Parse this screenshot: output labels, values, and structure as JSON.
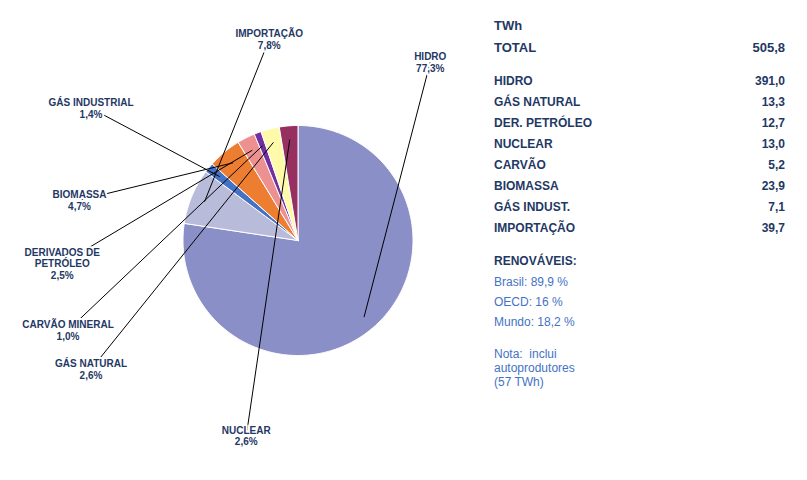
{
  "chart_data": {
    "type": "pie",
    "categories": [
      "HIDRO",
      "IMPORTAÇÃO",
      "GÁS INDUSTRIAL",
      "BIOMASSA",
      "DERIVADOS DE\nPETRÓLEO",
      "CARVÃO MINERAL",
      "GÁS NATURAL",
      "NUCLEAR"
    ],
    "values": [
      77.3,
      7.8,
      1.4,
      4.7,
      2.5,
      1.0,
      2.6,
      2.6
    ],
    "value_labels": [
      "77,3%",
      "7,8%",
      "1,4%",
      "4,7%",
      "2,5%",
      "1,0%",
      "2,6%",
      "2,6%"
    ],
    "colors": [
      "#8B8FC8",
      "#B8BCDA",
      "#4472C4",
      "#ED7D31",
      "#ED9090",
      "#7030A0",
      "#FFFAAA",
      "#963060"
    ],
    "data_labels": true,
    "annotations": {
      "table": {
        "title": "TWh",
        "total": {
          "label": "TOTAL",
          "value": "505,8"
        },
        "rows": [
          {
            "label": "HIDRO",
            "value": "391,0"
          },
          {
            "label": "GÁS NATURAL",
            "value": "13,3"
          },
          {
            "label": "DER. PETRÓLEO",
            "value": "12,7"
          },
          {
            "label": "NUCLEAR",
            "value": "13,0"
          },
          {
            "label": "CARVÃO",
            "value": "5,2"
          },
          {
            "label": "BIOMASSA",
            "value": "23,9"
          },
          {
            "label": "GÁS INDUST.",
            "value": "7,1"
          },
          {
            "label": "IMPORTAÇÃO",
            "value": "39,7"
          }
        ]
      },
      "renovaveis": {
        "title": "RENOVÁVEIS:",
        "lines": [
          "Brasil: 89,9 %",
          "OECD: 16 %",
          "Mundo: 18,2 %"
        ]
      },
      "note": "Nota:  inclui\nautoprodutores\n(57 TWh)"
    }
  }
}
